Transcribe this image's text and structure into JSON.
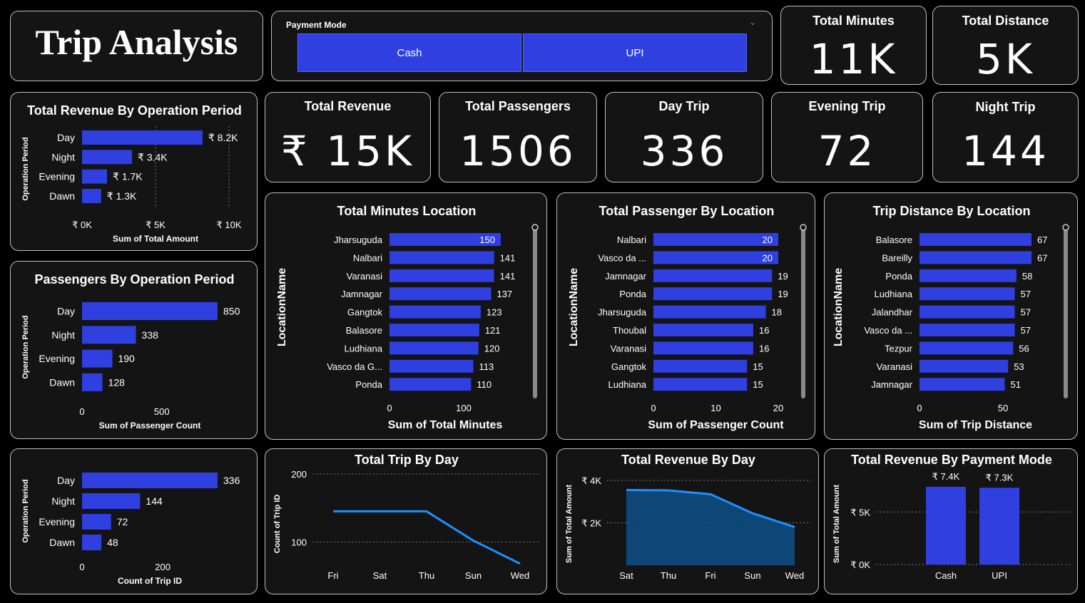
{
  "app": {
    "title": "Trip Analysis"
  },
  "slicer": {
    "label": "Payment Mode",
    "options": [
      "Cash",
      "UPI"
    ],
    "chevron": "chevron-down-icon"
  },
  "kpis": {
    "total_minutes": {
      "label": "Total Minutes",
      "value": "11K"
    },
    "total_distance": {
      "label": "Total Distance",
      "value": "5K"
    },
    "total_revenue": {
      "label": "Total Revenue",
      "value": "₹ 15K"
    },
    "total_passengers": {
      "label": "Total Passengers",
      "value": "1506"
    },
    "day_trip": {
      "label": "Day Trip",
      "value": "336"
    },
    "evening_trip": {
      "label": "Evening Trip",
      "value": "72"
    },
    "night_trip": {
      "label": "Night Trip",
      "value": "144"
    }
  },
  "colors": {
    "bar": "#2f3fe0",
    "line": "#1e90ff",
    "area": "#0d4d80",
    "panel": "#141414",
    "border": "#bfbfbf"
  },
  "chart_data": [
    {
      "id": "rev_period",
      "type": "bar",
      "orientation": "horizontal",
      "title": "Total Revenue By Operation Period",
      "categories": [
        "Day",
        "Night",
        "Evening",
        "Dawn"
      ],
      "values": [
        8200,
        3400,
        1700,
        1300
      ],
      "data_labels": [
        "₹ 8.2K",
        "₹ 3.4K",
        "₹ 1.7K",
        "₹ 1.3K"
      ],
      "xlim": [
        0,
        10000
      ],
      "x_ticks": [
        0,
        5000,
        10000
      ],
      "x_tick_labels": [
        "₹ 0K",
        "₹ 5K",
        "₹ 10K"
      ],
      "xlabel": "Sum of Total Amount",
      "ylabel": "Operation Period",
      "grid": true
    },
    {
      "id": "pass_period",
      "type": "bar",
      "orientation": "horizontal",
      "title": "Passengers By Operation Period",
      "categories": [
        "Day",
        "Night",
        "Evening",
        "Dawn"
      ],
      "values": [
        850,
        338,
        190,
        128
      ],
      "data_labels": [
        "850",
        "338",
        "190",
        "128"
      ],
      "xlim": [
        0,
        850
      ],
      "x_ticks": [
        0,
        500
      ],
      "x_tick_labels": [
        "0",
        "500"
      ],
      "xlabel": "Sum of Passenger Count",
      "ylabel": "Operation Period",
      "grid": false
    },
    {
      "id": "trips_period",
      "type": "bar",
      "orientation": "horizontal",
      "title": "",
      "categories": [
        "Day",
        "Night",
        "Evening",
        "Dawn"
      ],
      "values": [
        336,
        144,
        72,
        48
      ],
      "data_labels": [
        "336",
        "144",
        "72",
        "48"
      ],
      "xlim": [
        0,
        336
      ],
      "x_ticks": [
        0,
        200
      ],
      "x_tick_labels": [
        "0",
        "200"
      ],
      "xlabel": "Count of Trip ID",
      "ylabel": "Operation Period",
      "grid": false
    },
    {
      "id": "min_loc",
      "type": "bar",
      "orientation": "horizontal",
      "title": "Total Minutes Location",
      "categories": [
        "Jharsuguda",
        "Nalbari",
        "Varanasi",
        "Jamnagar",
        "Gangtok",
        "Balasore",
        "Ludhiana",
        "Vasco da G...",
        "Ponda"
      ],
      "values": [
        150,
        141,
        141,
        137,
        123,
        121,
        120,
        113,
        110
      ],
      "data_labels": [
        "150",
        "141",
        "141",
        "137",
        "123",
        "121",
        "120",
        "113",
        "110"
      ],
      "xlim": [
        0,
        150
      ],
      "x_ticks": [
        0,
        100
      ],
      "x_tick_labels": [
        "0",
        "100"
      ],
      "xlabel": "Sum of Total Minutes",
      "ylabel": "LocationName",
      "grid": false
    },
    {
      "id": "pass_loc",
      "type": "bar",
      "orientation": "horizontal",
      "title": "Total Passenger By Location",
      "categories": [
        "Nalbari",
        "Vasco da ...",
        "Jamnagar",
        "Ponda",
        "Jharsuguda",
        "Thoubal",
        "Varanasi",
        "Gangtok",
        "Ludhiana"
      ],
      "values": [
        20,
        20,
        19,
        19,
        18,
        16,
        16,
        15,
        15
      ],
      "data_labels": [
        "20",
        "20",
        "19",
        "19",
        "18",
        "16",
        "16",
        "15",
        "15"
      ],
      "xlim": [
        0,
        20
      ],
      "x_ticks": [
        0,
        10,
        20
      ],
      "x_tick_labels": [
        "0",
        "10",
        "20"
      ],
      "xlabel": "Sum of Passenger Count",
      "ylabel": "LocationName",
      "grid": false
    },
    {
      "id": "dist_loc",
      "type": "bar",
      "orientation": "horizontal",
      "title": "Trip Distance By Location",
      "categories": [
        "Balasore",
        "Bareilly",
        "Ponda",
        "Ludhiana",
        "Jalandhar",
        "Vasco da ...",
        "Tezpur",
        "Varanasi",
        "Jamnagar"
      ],
      "values": [
        67,
        67,
        58,
        57,
        57,
        57,
        56,
        53,
        51
      ],
      "data_labels": [
        "67",
        "67",
        "58",
        "57",
        "57",
        "57",
        "56",
        "53",
        "51"
      ],
      "xlim": [
        0,
        67
      ],
      "x_ticks": [
        0,
        50
      ],
      "x_tick_labels": [
        "0",
        "50"
      ],
      "xlabel": "Sum of Trip Distance",
      "ylabel": "LocationName",
      "grid": false
    },
    {
      "id": "trip_day",
      "type": "line",
      "title": "Total Trip By Day",
      "categories": [
        "Fri",
        "Sat",
        "Thu",
        "Sun",
        "Wed"
      ],
      "values": [
        145,
        145,
        145,
        102,
        68
      ],
      "ylim": [
        50,
        200
      ],
      "y_ticks": [
        100,
        200
      ],
      "y_tick_labels": [
        "100",
        "200"
      ],
      "xlabel": "",
      "ylabel": "Count of Trip ID",
      "grid": true
    },
    {
      "id": "rev_day",
      "type": "area",
      "title": "Total Revenue By Day",
      "categories": [
        "Sat",
        "Thu",
        "Fri",
        "Sun",
        "Wed"
      ],
      "values": [
        3550,
        3530,
        3350,
        2450,
        1800
      ],
      "ylim": [
        0,
        4000
      ],
      "y_ticks": [
        2000,
        4000
      ],
      "y_tick_labels": [
        "₹ 2K",
        "₹ 4K"
      ],
      "xlabel": "",
      "ylabel": "Sum of Total Amount",
      "grid": true
    },
    {
      "id": "rev_payment",
      "type": "bar",
      "orientation": "vertical",
      "title": "Total Revenue By Payment Mode",
      "categories": [
        "Cash",
        "UPI"
      ],
      "values": [
        7400,
        7300
      ],
      "data_labels": [
        "₹ 7.4K",
        "₹ 7.3K"
      ],
      "ylim": [
        0,
        8000
      ],
      "y_ticks": [
        0,
        5000
      ],
      "y_tick_labels": [
        "₹ 0K",
        "₹ 5K"
      ],
      "xlabel": "",
      "ylabel": "Sum of Total Amount",
      "grid": true
    }
  ]
}
